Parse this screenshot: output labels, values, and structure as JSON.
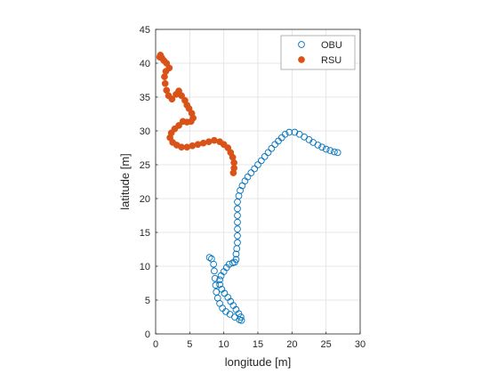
{
  "chart_data": {
    "type": "scatter",
    "xlabel": "longitude [m]",
    "ylabel": "latitude [m]",
    "xlim": [
      0,
      30
    ],
    "ylim": [
      0,
      45
    ],
    "x_ticks": [
      "0",
      "5",
      "10",
      "15",
      "20",
      "25",
      "30"
    ],
    "y_ticks": [
      "0",
      "5",
      "10",
      "15",
      "20",
      "25",
      "30",
      "35",
      "40",
      "45"
    ],
    "grid": true,
    "legend_position": "top-right",
    "series": [
      {
        "name": "OBU",
        "marker": "open-circle",
        "color": "#0072BD",
        "points": [
          [
            26.7,
            26.8
          ],
          [
            26.2,
            26.9
          ],
          [
            25.6,
            27.1
          ],
          [
            25.0,
            27.3
          ],
          [
            24.4,
            27.6
          ],
          [
            23.8,
            27.9
          ],
          [
            23.1,
            28.3
          ],
          [
            22.5,
            28.7
          ],
          [
            21.8,
            29.1
          ],
          [
            21.1,
            29.5
          ],
          [
            20.4,
            29.8
          ],
          [
            19.6,
            29.8
          ],
          [
            19.0,
            29.5
          ],
          [
            18.5,
            29.0
          ],
          [
            18.0,
            28.5
          ],
          [
            17.5,
            28.0
          ],
          [
            17.0,
            27.4
          ],
          [
            16.5,
            26.8
          ],
          [
            16.0,
            26.2
          ],
          [
            15.5,
            25.6
          ],
          [
            15.0,
            25.0
          ],
          [
            14.5,
            24.4
          ],
          [
            14.0,
            23.8
          ],
          [
            13.5,
            23.2
          ],
          [
            13.1,
            22.6
          ],
          [
            12.7,
            21.9
          ],
          [
            12.4,
            21.2
          ],
          [
            12.2,
            20.4
          ],
          [
            12.0,
            19.5
          ],
          [
            12.0,
            18.5
          ],
          [
            12.0,
            17.5
          ],
          [
            12.0,
            16.5
          ],
          [
            12.0,
            15.5
          ],
          [
            12.0,
            14.5
          ],
          [
            12.0,
            13.5
          ],
          [
            11.9,
            12.6
          ],
          [
            11.8,
            11.8
          ],
          [
            11.8,
            11.0
          ],
          [
            11.6,
            10.6
          ],
          [
            11.3,
            10.5
          ],
          [
            10.8,
            10.3
          ],
          [
            10.4,
            9.8
          ],
          [
            10.0,
            9.2
          ],
          [
            9.6,
            8.6
          ],
          [
            9.4,
            8.0
          ],
          [
            9.4,
            7.3
          ],
          [
            9.7,
            6.6
          ],
          [
            10.1,
            6.0
          ],
          [
            10.6,
            5.4
          ],
          [
            11.0,
            4.8
          ],
          [
            11.4,
            4.2
          ],
          [
            11.8,
            3.6
          ],
          [
            12.2,
            3.0
          ],
          [
            12.5,
            2.5
          ],
          [
            12.6,
            2.0
          ],
          [
            12.3,
            2.1
          ],
          [
            11.6,
            2.5
          ],
          [
            10.9,
            2.9
          ],
          [
            10.3,
            3.3
          ],
          [
            9.8,
            3.8
          ],
          [
            9.4,
            4.5
          ],
          [
            9.1,
            5.3
          ],
          [
            8.9,
            6.2
          ],
          [
            8.8,
            7.2
          ],
          [
            8.7,
            8.2
          ],
          [
            8.6,
            9.3
          ],
          [
            8.5,
            10.3
          ],
          [
            8.2,
            11.1
          ],
          [
            7.9,
            11.3
          ]
        ]
      },
      {
        "name": "RSU",
        "marker": "filled-circle",
        "color": "#D95319",
        "points": [
          [
            0.6,
            40.9
          ],
          [
            0.7,
            41.2
          ],
          [
            0.9,
            40.8
          ],
          [
            1.2,
            40.4
          ],
          [
            1.6,
            40.0
          ],
          [
            2.0,
            39.3
          ],
          [
            1.5,
            38.8
          ],
          [
            1.3,
            38.0
          ],
          [
            1.4,
            37.0
          ],
          [
            1.6,
            36.0
          ],
          [
            1.9,
            35.2
          ],
          [
            2.4,
            34.7
          ],
          [
            3.0,
            35.4
          ],
          [
            3.4,
            35.9
          ],
          [
            3.8,
            35.2
          ],
          [
            4.3,
            34.5
          ],
          [
            4.6,
            33.8
          ],
          [
            4.9,
            33.3
          ],
          [
            5.3,
            32.6
          ],
          [
            5.5,
            31.9
          ],
          [
            5.2,
            31.4
          ],
          [
            4.6,
            31.3
          ],
          [
            4.0,
            31.4
          ],
          [
            3.4,
            30.8
          ],
          [
            2.8,
            30.3
          ],
          [
            2.3,
            29.7
          ],
          [
            2.1,
            29.0
          ],
          [
            2.5,
            28.3
          ],
          [
            3.1,
            27.9
          ],
          [
            3.8,
            27.6
          ],
          [
            4.6,
            27.6
          ],
          [
            5.4,
            27.8
          ],
          [
            6.2,
            28.0
          ],
          [
            7.0,
            28.2
          ],
          [
            7.8,
            28.4
          ],
          [
            8.6,
            28.6
          ],
          [
            9.4,
            28.4
          ],
          [
            10.0,
            28.0
          ],
          [
            10.6,
            27.5
          ],
          [
            11.0,
            26.8
          ],
          [
            11.3,
            26.1
          ],
          [
            11.5,
            25.3
          ],
          [
            11.5,
            24.5
          ],
          [
            11.4,
            23.8
          ]
        ]
      }
    ]
  }
}
